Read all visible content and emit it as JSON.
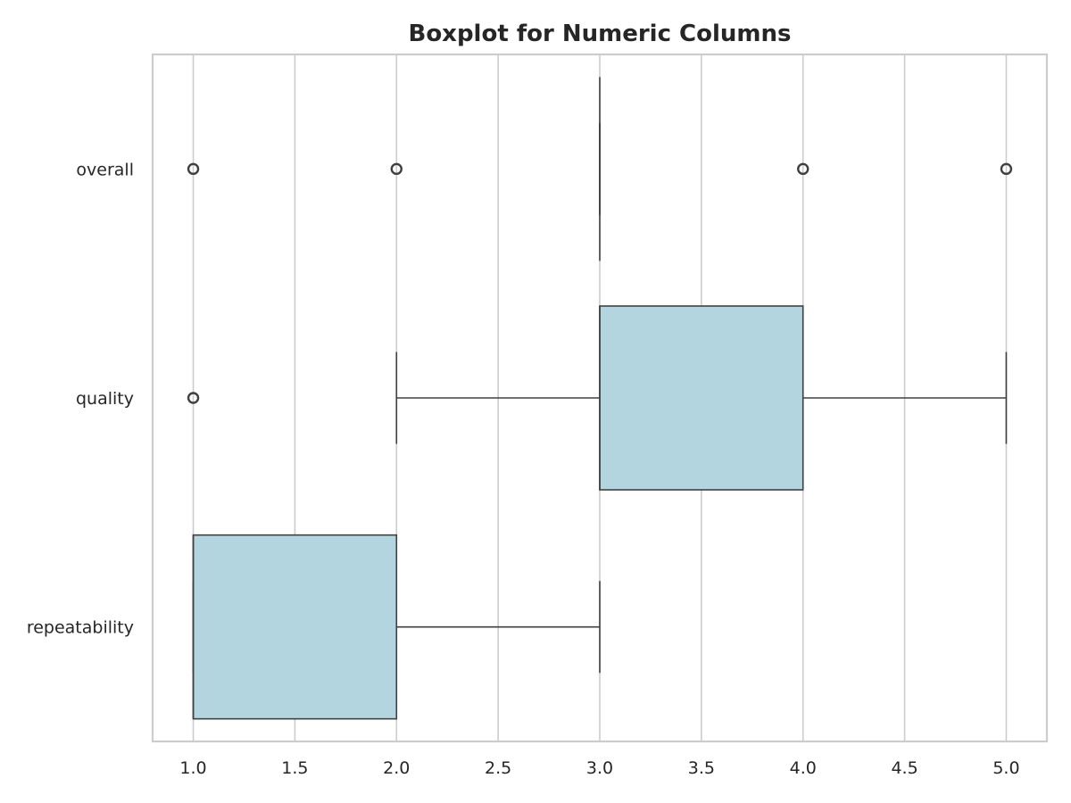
{
  "chart_data": {
    "type": "boxplot",
    "orientation": "horizontal",
    "title": "Boxplot for Numeric Columns",
    "xlabel": "",
    "ylabel": "",
    "xlim": [
      0.8,
      5.2
    ],
    "x_ticks": [
      1.0,
      1.5,
      2.0,
      2.5,
      3.0,
      3.5,
      4.0,
      4.5,
      5.0
    ],
    "x_tick_labels": [
      "1.0",
      "1.5",
      "2.0",
      "2.5",
      "3.0",
      "3.5",
      "4.0",
      "4.5",
      "5.0"
    ],
    "grid": "vertical",
    "categories": [
      "overall",
      "quality",
      "repeatability"
    ],
    "boxes": [
      {
        "category": "overall",
        "whisker_low": 3.0,
        "q1": 3.0,
        "median": 3.0,
        "q3": 3.0,
        "whisker_high": 3.0,
        "outliers": [
          1.0,
          2.0,
          4.0,
          5.0
        ]
      },
      {
        "category": "quality",
        "whisker_low": 2.0,
        "q1": 3.0,
        "median": 3.0,
        "q3": 4.0,
        "whisker_high": 5.0,
        "outliers": [
          1.0
        ]
      },
      {
        "category": "repeatability",
        "whisker_low": 1.0,
        "q1": 1.0,
        "median": 1.0,
        "q3": 2.0,
        "whisker_high": 3.0,
        "outliers": []
      }
    ],
    "colors": {
      "box_fill": "#b3d5e0",
      "line": "#404040",
      "grid": "#cccccc",
      "spine": "#cccccc"
    }
  }
}
